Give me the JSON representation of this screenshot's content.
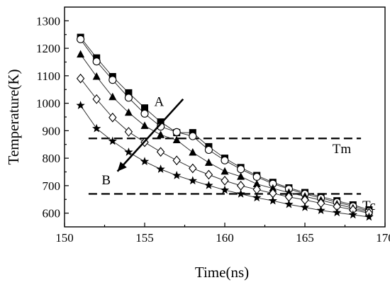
{
  "chart_data": {
    "type": "line",
    "xlabel": "Time(ns)",
    "ylabel": "Temperature(K)",
    "xlim": [
      150,
      170
    ],
    "ylim": [
      550,
      1350
    ],
    "xticks": [
      "150",
      "155",
      "160",
      "165",
      "170"
    ],
    "yticks": [
      "600",
      "700",
      "800",
      "900",
      "1000",
      "1100",
      "1200",
      "1300"
    ],
    "x": [
      151,
      152,
      153,
      154,
      155,
      156,
      157,
      158,
      159,
      160,
      161,
      162,
      163,
      164,
      165,
      166,
      167,
      168,
      169
    ],
    "series": [
      {
        "marker": "square-filled",
        "values": [
          1240,
          1165,
          1097,
          1038,
          983,
          932,
          893,
          893,
          842,
          800,
          766,
          737,
          712,
          692,
          675,
          660,
          645,
          630,
          612
        ]
      },
      {
        "marker": "circle-open",
        "values": [
          1233,
          1152,
          1085,
          1020,
          962,
          915,
          895,
          880,
          830,
          792,
          760,
          732,
          707,
          688,
          670,
          655,
          640,
          625,
          607
        ]
      },
      {
        "marker": "triangle-filled",
        "values": [
          1178,
          1097,
          1023,
          966,
          918,
          885,
          866,
          821,
          784,
          752,
          733,
          706,
          690,
          675,
          661,
          647,
          633,
          618,
          604
        ]
      },
      {
        "marker": "diamond-open",
        "values": [
          1090,
          1015,
          948,
          896,
          858,
          823,
          792,
          763,
          740,
          718,
          700,
          686,
          672,
          659,
          648,
          636,
          624,
          612,
          600
        ]
      },
      {
        "marker": "star-filled",
        "values": [
          992,
          908,
          862,
          822,
          788,
          760,
          737,
          718,
          701,
          684,
          670,
          656,
          645,
          632,
          621,
          610,
          602,
          594,
          586
        ]
      }
    ],
    "reference_lines": [
      {
        "y": 872,
        "x_range": [
          151.5,
          168.5
        ],
        "style": "dashed"
      },
      {
        "y": 670,
        "x_range": [
          151.5,
          168.5
        ],
        "style": "dashed"
      }
    ],
    "annotations": [
      {
        "text": "A",
        "x": 155.9,
        "y": 990
      },
      {
        "text": "B",
        "x": 152.6,
        "y": 705
      },
      {
        "text": "Tm",
        "x": 167.3,
        "y": 818
      },
      {
        "text": "Tc",
        "x": 169.0,
        "y": 612
      }
    ],
    "arrow": {
      "from": {
        "x": 157.4,
        "y": 1015
      },
      "to": {
        "x": 153.3,
        "y": 752
      }
    }
  }
}
